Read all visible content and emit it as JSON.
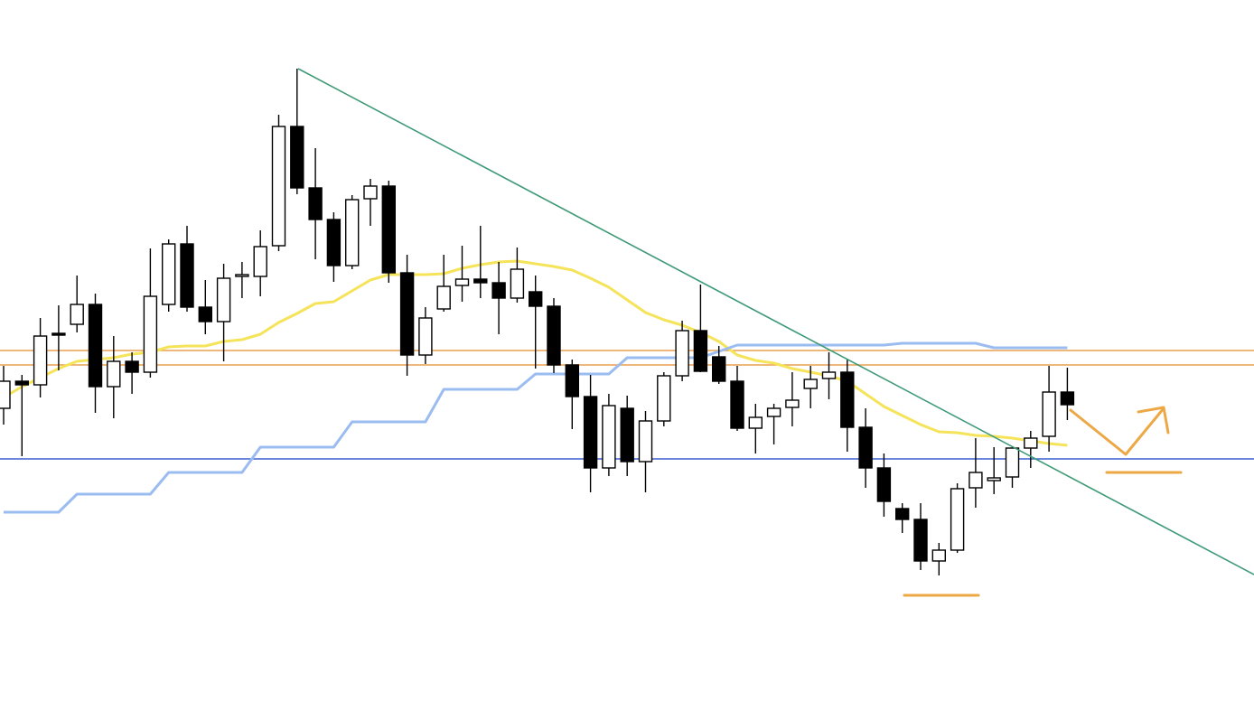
{
  "chart_data": {
    "type": "candlestick",
    "ylim": [
      0,
      776
    ],
    "open": [
      324,
      354,
      350,
      407,
      417,
      439,
      348,
      376,
      364,
      439,
      506,
      436,
      420,
      470,
      470,
      504,
      636,
      568,
      533,
      482,
      556,
      570,
      474,
      383,
      434,
      460,
      467,
      463,
      446,
      453,
      437,
      372,
      337,
      258,
      324,
      265,
      310,
      360,
      410,
      381,
      354,
      302,
      315,
      325,
      346,
      357,
      364,
      303,
      258,
      213,
      201,
      155,
      167,
      236,
      244,
      248,
      280,
      293,
      342
    ],
    "high": [
      371,
      361,
      424,
      438,
      471,
      451,
      404,
      386,
      501,
      511,
      526,
      466,
      484,
      486,
      521,
      649,
      700,
      612,
      541,
      560,
      578,
      576,
      494,
      436,
      494,
      504,
      526,
      486,
      502,
      471,
      446,
      378,
      361,
      340,
      338,
      321,
      364,
      421,
      461,
      393,
      371,
      329,
      329,
      364,
      371,
      386,
      378,
      324,
      274,
      219,
      219,
      175,
      241,
      291,
      281,
      281,
      299,
      371,
      369
    ],
    "low": [
      306,
      271,
      336,
      366,
      408,
      319,
      313,
      340,
      358,
      431,
      431,
      406,
      376,
      446,
      448,
      498,
      561,
      489,
      464,
      478,
      526,
      463,
      360,
      373,
      431,
      442,
      446,
      406,
      441,
      368,
      363,
      301,
      231,
      249,
      249,
      231,
      304,
      354,
      364,
      351,
      299,
      274,
      284,
      304,
      324,
      334,
      276,
      236,
      204,
      186,
      145,
      139,
      164,
      214,
      229,
      236,
      258,
      276,
      311
    ],
    "close": [
      354,
      350,
      404,
      405,
      439,
      348,
      376,
      364,
      448,
      506,
      436,
      420,
      468,
      472,
      503,
      636,
      568,
      533,
      482,
      555,
      570,
      474,
      383,
      424,
      459,
      467,
      463,
      446,
      478,
      437,
      372,
      337,
      258,
      327,
      265,
      310,
      360,
      410,
      365,
      354,
      302,
      314,
      324,
      333,
      356,
      364,
      303,
      258,
      221,
      201,
      155,
      167,
      235,
      253,
      247,
      280,
      291,
      342,
      328
    ],
    "up_color": "#ffffff",
    "down_color": "#000000",
    "edge_color": "#000000",
    "series": [
      {
        "color": "#f5e35a",
        "values": [
          336,
          348,
          358,
          368,
          376,
          378,
          380,
          384,
          386,
          392,
          393,
          393,
          398,
          400,
          406,
          419,
          429,
          440,
          442,
          454,
          466,
          472,
          472,
          472,
          473,
          479,
          483,
          486,
          487,
          484,
          481,
          477,
          468,
          458,
          444,
          430,
          422,
          416,
          408,
          398,
          383,
          377,
          374,
          368,
          364,
          360,
          354,
          340,
          326,
          316,
          306,
          298,
          297,
          294,
          293,
          291,
          288,
          285,
          283
        ]
      },
      {
        "color": "#9bbcf0",
        "values": [
          209,
          209,
          209,
          209,
          229,
          229,
          229,
          229,
          229,
          253,
          253,
          253,
          253,
          253,
          281,
          281,
          281,
          281,
          281,
          309,
          309,
          309,
          309,
          309,
          345,
          345,
          345,
          345,
          345,
          362,
          362,
          362,
          362,
          362,
          380,
          380,
          380,
          380,
          380,
          387,
          394,
          394,
          394,
          394,
          394,
          394,
          394,
          394,
          394,
          396,
          396,
          396,
          396,
          396,
          391,
          391,
          391,
          391,
          391
        ]
      }
    ],
    "hlines": [
      {
        "value": 388,
        "color": "#e8a050"
      },
      {
        "value": 372,
        "color": "#e8a050"
      },
      {
        "value": 268,
        "color": "#3a5fd0"
      }
    ]
  }
}
